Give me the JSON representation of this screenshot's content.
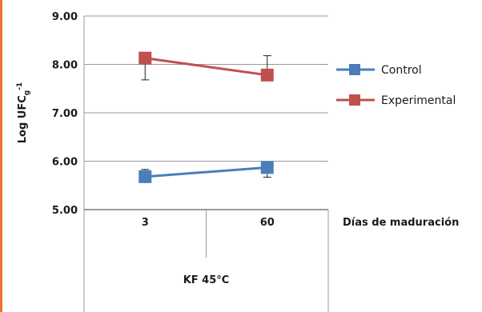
{
  "chart_data": {
    "type": "line",
    "categories": [
      "3",
      "60"
    ],
    "group_label": "KF 45°C",
    "xlabel": "Días de maduración",
    "ylabel_main": "Log UFC",
    "ylabel_sub": "g",
    "ylabel_sup": "-1",
    "ylim": [
      5.0,
      9.0
    ],
    "yticks": [
      "5.00",
      "6.00",
      "7.00",
      "8.00",
      "9.00"
    ],
    "grid": true,
    "legend_position": "right",
    "series": [
      {
        "name": "Control",
        "color": "#4a7ebb",
        "values": [
          5.68,
          5.87
        ],
        "err_up": [
          0.15,
          0.0
        ],
        "err_down": [
          0.0,
          0.2
        ]
      },
      {
        "name": "Experimental",
        "color": "#c0504d",
        "values": [
          8.13,
          7.78
        ],
        "err_up": [
          0.0,
          0.4
        ],
        "err_down": [
          0.45,
          0.0
        ]
      }
    ]
  }
}
